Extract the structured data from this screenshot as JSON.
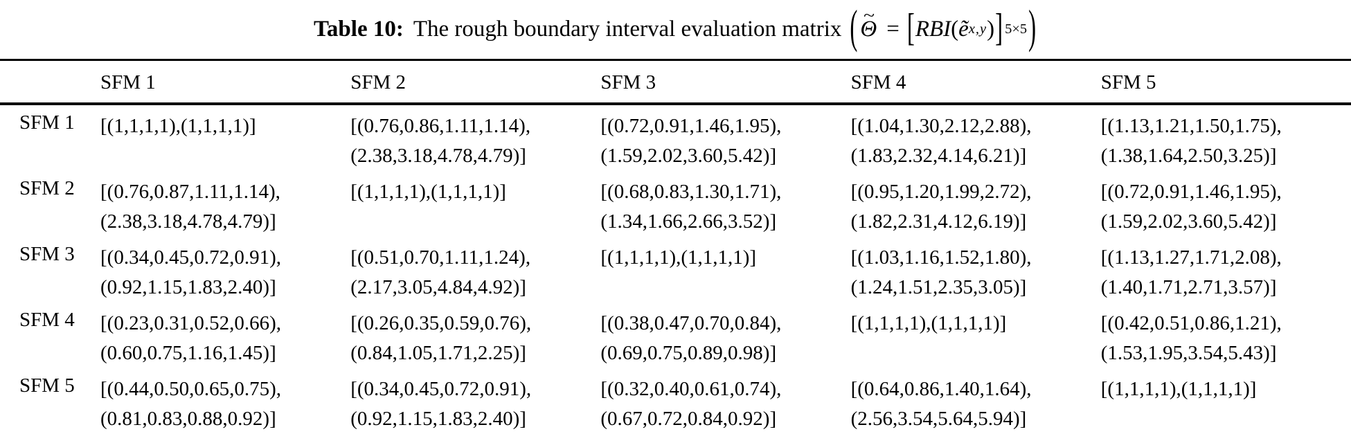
{
  "caption": {
    "label": "Table 10:",
    "text": "The rough boundary interval evaluation matrix",
    "formula": {
      "open_paren": "(",
      "theta": "Θ",
      "theta_tilde": "~",
      "equals": "=",
      "open_bracket": "[",
      "func": "RBI",
      "arg_open": "(",
      "e_tilde": "ẽ",
      "arg_sub": "x,y",
      "arg_close": ")",
      "close_bracket": "]",
      "matrix_sub": "5×5",
      "close_paren": ")"
    }
  },
  "table": {
    "columns": [
      "SFM 1",
      "SFM 2",
      "SFM 3",
      "SFM 4",
      "SFM 5"
    ],
    "rows": [
      {
        "label": "SFM 1",
        "cells": [
          {
            "l1": "[(1,1,1,1),(1,1,1,1)]",
            "l2": ""
          },
          {
            "l1": "[(0.76,0.86,1.11,1.14),",
            "l2": "(2.38,3.18,4.78,4.79)]"
          },
          {
            "l1": "[(0.72,0.91,1.46,1.95),",
            "l2": "(1.59,2.02,3.60,5.42)]"
          },
          {
            "l1": "[(1.04,1.30,2.12,2.88),",
            "l2": "(1.83,2.32,4.14,6.21)]"
          },
          {
            "l1": "[(1.13,1.21,1.50,1.75),",
            "l2": "(1.38,1.64,2.50,3.25)]"
          }
        ]
      },
      {
        "label": "SFM 2",
        "cells": [
          {
            "l1": "[(0.76,0.87,1.11,1.14),",
            "l2": "(2.38,3.18,4.78,4.79)]"
          },
          {
            "l1": "[(1,1,1,1),(1,1,1,1)]",
            "l2": ""
          },
          {
            "l1": "[(0.68,0.83,1.30,1.71),",
            "l2": "(1.34,1.66,2.66,3.52)]"
          },
          {
            "l1": "[(0.95,1.20,1.99,2.72),",
            "l2": "(1.82,2.31,4.12,6.19)]"
          },
          {
            "l1": "[(0.72,0.91,1.46,1.95),",
            "l2": "(1.59,2.02,3.60,5.42)]"
          }
        ]
      },
      {
        "label": "SFM 3",
        "cells": [
          {
            "l1": "[(0.34,0.45,0.72,0.91),",
            "l2": "(0.92,1.15,1.83,2.40)]"
          },
          {
            "l1": "[(0.51,0.70,1.11,1.24),",
            "l2": "(2.17,3.05,4.84,4.92)]"
          },
          {
            "l1": "[(1,1,1,1),(1,1,1,1)]",
            "l2": ""
          },
          {
            "l1": "[(1.03,1.16,1.52,1.80),",
            "l2": "(1.24,1.51,2.35,3.05)]"
          },
          {
            "l1": "[(1.13,1.27,1.71,2.08),",
            "l2": "(1.40,1.71,2.71,3.57)]"
          }
        ]
      },
      {
        "label": "SFM 4",
        "cells": [
          {
            "l1": "[(0.23,0.31,0.52,0.66),",
            "l2": "(0.60,0.75,1.16,1.45)]"
          },
          {
            "l1": "[(0.26,0.35,0.59,0.76),",
            "l2": "(0.84,1.05,1.71,2.25)]"
          },
          {
            "l1": "[(0.38,0.47,0.70,0.84),",
            "l2": "(0.69,0.75,0.89,0.98)]"
          },
          {
            "l1": "[(1,1,1,1),(1,1,1,1)]",
            "l2": ""
          },
          {
            "l1": "[(0.42,0.51,0.86,1.21),",
            "l2": "(1.53,1.95,3.54,5.43)]"
          }
        ]
      },
      {
        "label": "SFM 5",
        "cells": [
          {
            "l1": "[(0.44,0.50,0.65,0.75),",
            "l2": "(0.81,0.83,0.88,0.92)]"
          },
          {
            "l1": "[(0.34,0.45,0.72,0.91),",
            "l2": "(0.92,1.15,1.83,2.40)]"
          },
          {
            "l1": "[(0.32,0.40,0.61,0.74),",
            "l2": "(0.67,0.72,0.84,0.92)]"
          },
          {
            "l1": "[(0.64,0.86,1.40,1.64),",
            "l2": "(2.56,3.54,5.64,5.94)]"
          },
          {
            "l1": "[(1,1,1,1),(1,1,1,1)]",
            "l2": ""
          }
        ]
      }
    ]
  }
}
